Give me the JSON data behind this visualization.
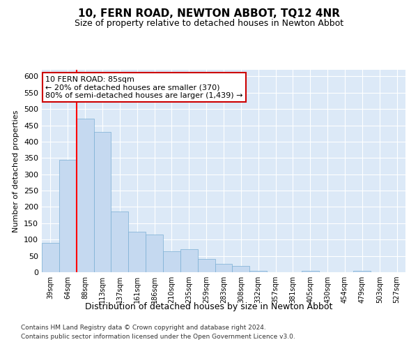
{
  "title": "10, FERN ROAD, NEWTON ABBOT, TQ12 4NR",
  "subtitle": "Size of property relative to detached houses in Newton Abbot",
  "xlabel": "Distribution of detached houses by size in Newton Abbot",
  "ylabel": "Number of detached properties",
  "bar_color": "#c5d9f0",
  "bar_edge_color": "#7bafd4",
  "background_color": "#dce9f7",
  "grid_color": "#ffffff",
  "categories": [
    "39sqm",
    "64sqm",
    "88sqm",
    "113sqm",
    "137sqm",
    "161sqm",
    "186sqm",
    "210sqm",
    "235sqm",
    "259sqm",
    "283sqm",
    "308sqm",
    "332sqm",
    "357sqm",
    "381sqm",
    "405sqm",
    "430sqm",
    "454sqm",
    "479sqm",
    "503sqm",
    "527sqm"
  ],
  "values": [
    90,
    345,
    470,
    430,
    185,
    125,
    115,
    65,
    70,
    40,
    25,
    20,
    5,
    0,
    0,
    5,
    0,
    0,
    5,
    0,
    0
  ],
  "red_line_index": 2,
  "annotation_text": "10 FERN ROAD: 85sqm\n← 20% of detached houses are smaller (370)\n80% of semi-detached houses are larger (1,439) →",
  "annotation_box_color": "#ffffff",
  "annotation_box_edge": "#cc0000",
  "ylim": [
    0,
    620
  ],
  "yticks": [
    0,
    50,
    100,
    150,
    200,
    250,
    300,
    350,
    400,
    450,
    500,
    550,
    600
  ],
  "fig_bg": "#ffffff",
  "footer1": "Contains HM Land Registry data © Crown copyright and database right 2024.",
  "footer2": "Contains public sector information licensed under the Open Government Licence v3.0."
}
